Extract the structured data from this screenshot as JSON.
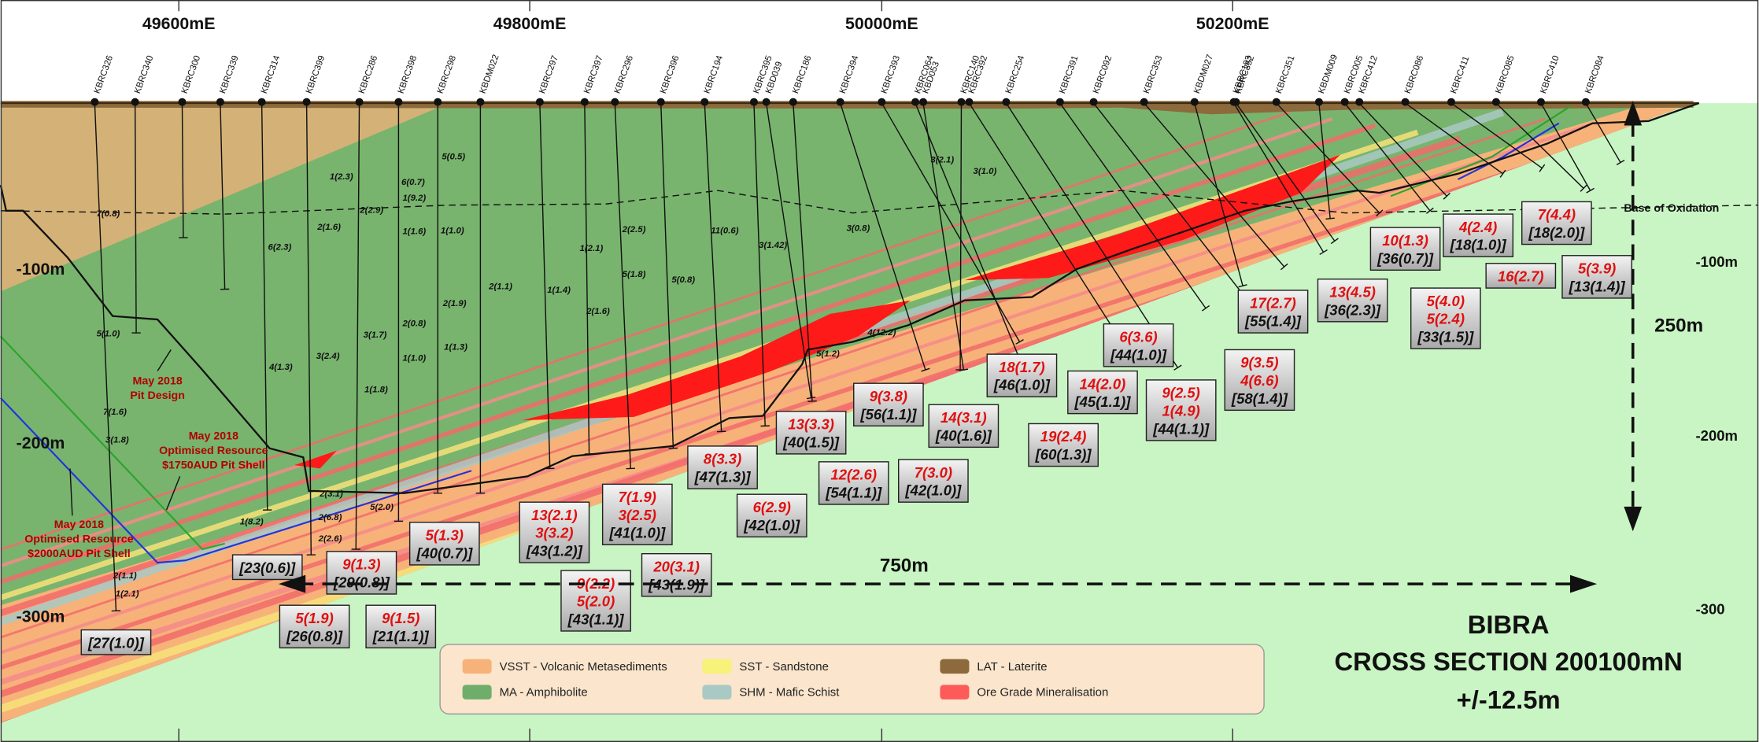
{
  "eastings": [
    "49600mE",
    "49800mE",
    "50000mE",
    "50200mE"
  ],
  "depth_labels_left": [
    "-100m",
    "-200m",
    "-300m"
  ],
  "depth_labels_right": [
    "-100m",
    "-200m",
    "-300"
  ],
  "holes": [
    "KBRC326",
    "KBRC340",
    "KBRC300",
    "KBRC339",
    "KBRC314",
    "KBRC399",
    "KBRC286",
    "KBRC398",
    "KBRC298",
    "KBDM022",
    "KBRC297",
    "KBRC397",
    "KBRC296",
    "KBRC396",
    "KBRC194",
    "KBRC395",
    "KBD039",
    "KBRC186",
    "KBRC394",
    "KBRC393",
    "KBRC064",
    "KBD053",
    "KBRC140",
    "KBRC392",
    "KBRC254",
    "KBRC391",
    "KBRC092",
    "KBRC353",
    "KBDM027",
    "KBRC193",
    "KBRC352",
    "KBRC351",
    "KBDM009",
    "KBRC005",
    "KBRC412",
    "KBRC086",
    "KBRC411",
    "KBRC085",
    "KBRC410",
    "KBRC084"
  ],
  "intervals": [
    "7(0.8)",
    "5(1.0)",
    "7(1.6)",
    "3(1.8)",
    "1(2.3)",
    "2(2.9)",
    "2(1.6)",
    "6(2.3)",
    "3(2.4)",
    "4(1.3)",
    "6(0.7)",
    "1(9.2)",
    "1(1.6)",
    "5(0.5)",
    "1(1.0)",
    "2(1.9)",
    "2(0.8)",
    "3(1.7)",
    "1(1.0)",
    "1(1.3)",
    "1(1.8)",
    "2(1.1)",
    "1(1.4)",
    "1(2.1)",
    "2(2.5)",
    "5(1.8)",
    "2(1.6)",
    "5(0.8)",
    "11(0.6)",
    "3(1.42)",
    "3(0.8)",
    "3(2.1)",
    "3(1.0)",
    "4(12.2)",
    "5(1.2)",
    "2(3.1)",
    "2(6.8)",
    "2(2.6)",
    "5(2.0)",
    "1(8.2)",
    "2(1.1)",
    "1(2.1)"
  ],
  "intercept_boxes": [
    {
      "total": "[27(1.0)]"
    },
    {
      "total": "[23(0.6)]"
    },
    {
      "grades": [
        "9(1.3)"
      ],
      "total": "[29(0.8)]"
    },
    {
      "grades": [
        "5(1.9)"
      ],
      "total": "[26(0.8)]"
    },
    {
      "grades": [
        "9(1.5)"
      ],
      "total": "[21(1.1)]"
    },
    {
      "grades": [
        "5(1.3)"
      ],
      "total": "[40(0.7)]"
    },
    {
      "grades": [
        "13(2.1)",
        "3(3.2)"
      ],
      "total": "[43(1.2)]"
    },
    {
      "grades": [
        "7(1.9)",
        "3(2.5)"
      ],
      "total": "[41(1.0)]"
    },
    {
      "grades": [
        "9(2.2)",
        "5(2.0)"
      ],
      "total": "[43(1.1)]"
    },
    {
      "grades": [
        "20(3.1)"
      ],
      "total": "[43(1.9)]"
    },
    {
      "grades": [
        "8(3.3)"
      ],
      "total": "[47(1.3)]"
    },
    {
      "grades": [
        "6(2.9)"
      ],
      "total": "[42(1.0)]"
    },
    {
      "grades": [
        "13(3.3)"
      ],
      "total": "[40(1.5)]"
    },
    {
      "grades": [
        "12(2.6)"
      ],
      "total": "[54(1.1)]"
    },
    {
      "grades": [
        "9(3.8)"
      ],
      "total": "[56(1.1)]"
    },
    {
      "grades": [
        "7(3.0)"
      ],
      "total": "[42(1.0)]"
    },
    {
      "grades": [
        "14(3.1)"
      ],
      "total": "[40(1.6)]"
    },
    {
      "grades": [
        "18(1.7)"
      ],
      "total": "[46(1.0)]"
    },
    {
      "grades": [
        "19(2.4)"
      ],
      "total": "[60(1.3)]"
    },
    {
      "grades": [
        "14(2.0)"
      ],
      "total": "[45(1.1)]"
    },
    {
      "grades": [
        "6(3.6)"
      ],
      "total": "[44(1.0)]"
    },
    {
      "grades": [
        "9(2.5)",
        "1(4.9)"
      ],
      "total": "[44(1.1)]"
    },
    {
      "grades": [
        "9(3.5)",
        "4(6.6)"
      ],
      "total": "[58(1.4)]"
    },
    {
      "grades": [
        "17(2.7)"
      ],
      "total": "[55(1.4)]"
    },
    {
      "grades": [
        "13(4.5)"
      ],
      "total": "[36(2.3)]"
    },
    {
      "grades": [
        "10(1.3)"
      ],
      "total": "[36(0.7)]"
    },
    {
      "grades": [
        "5(4.0)",
        "5(2.4)"
      ],
      "total": "[33(1.5)]"
    },
    {
      "grades": [
        "4(2.4)"
      ],
      "total": "[18(1.0)]"
    },
    {
      "grades": [
        "16(2.7)"
      ]
    },
    {
      "grades": [
        "7(4.4)"
      ],
      "total": "[18(2.0)]"
    },
    {
      "grades": [
        "5(3.9)"
      ],
      "total": "[13(1.4)]"
    }
  ],
  "annotations": {
    "width": "750m",
    "depth": "250m",
    "base_of_oxidation": "Base of Oxidation",
    "pit_design": [
      "May 2018",
      "Pit Design"
    ],
    "shell_1750": [
      "May 2018",
      "Optimised Resource",
      "$1750AUD Pit Shell"
    ],
    "shell_2000": [
      "May 2018",
      "Optimised Resource",
      "$2000AUD Pit Shell"
    ]
  },
  "legend": [
    {
      "label": "VSST - Volcanic Metasediments",
      "color": "#f7b27a"
    },
    {
      "label": "SST - Sandstone",
      "color": "#f7f27a"
    },
    {
      "label": "LAT - Laterite",
      "color": "#8c6a3c"
    },
    {
      "label": "MA - Amphibolite",
      "color": "#6fae6a"
    },
    {
      "label": "SHM - Mafic Schist",
      "color": "#a9c9c4"
    },
    {
      "label": "Ore Grade Mineralisation",
      "color": "#ff5a5a"
    }
  ],
  "title": [
    "BIBRA",
    "CROSS SECTION 200100mN",
    "+/-12.5m"
  ]
}
